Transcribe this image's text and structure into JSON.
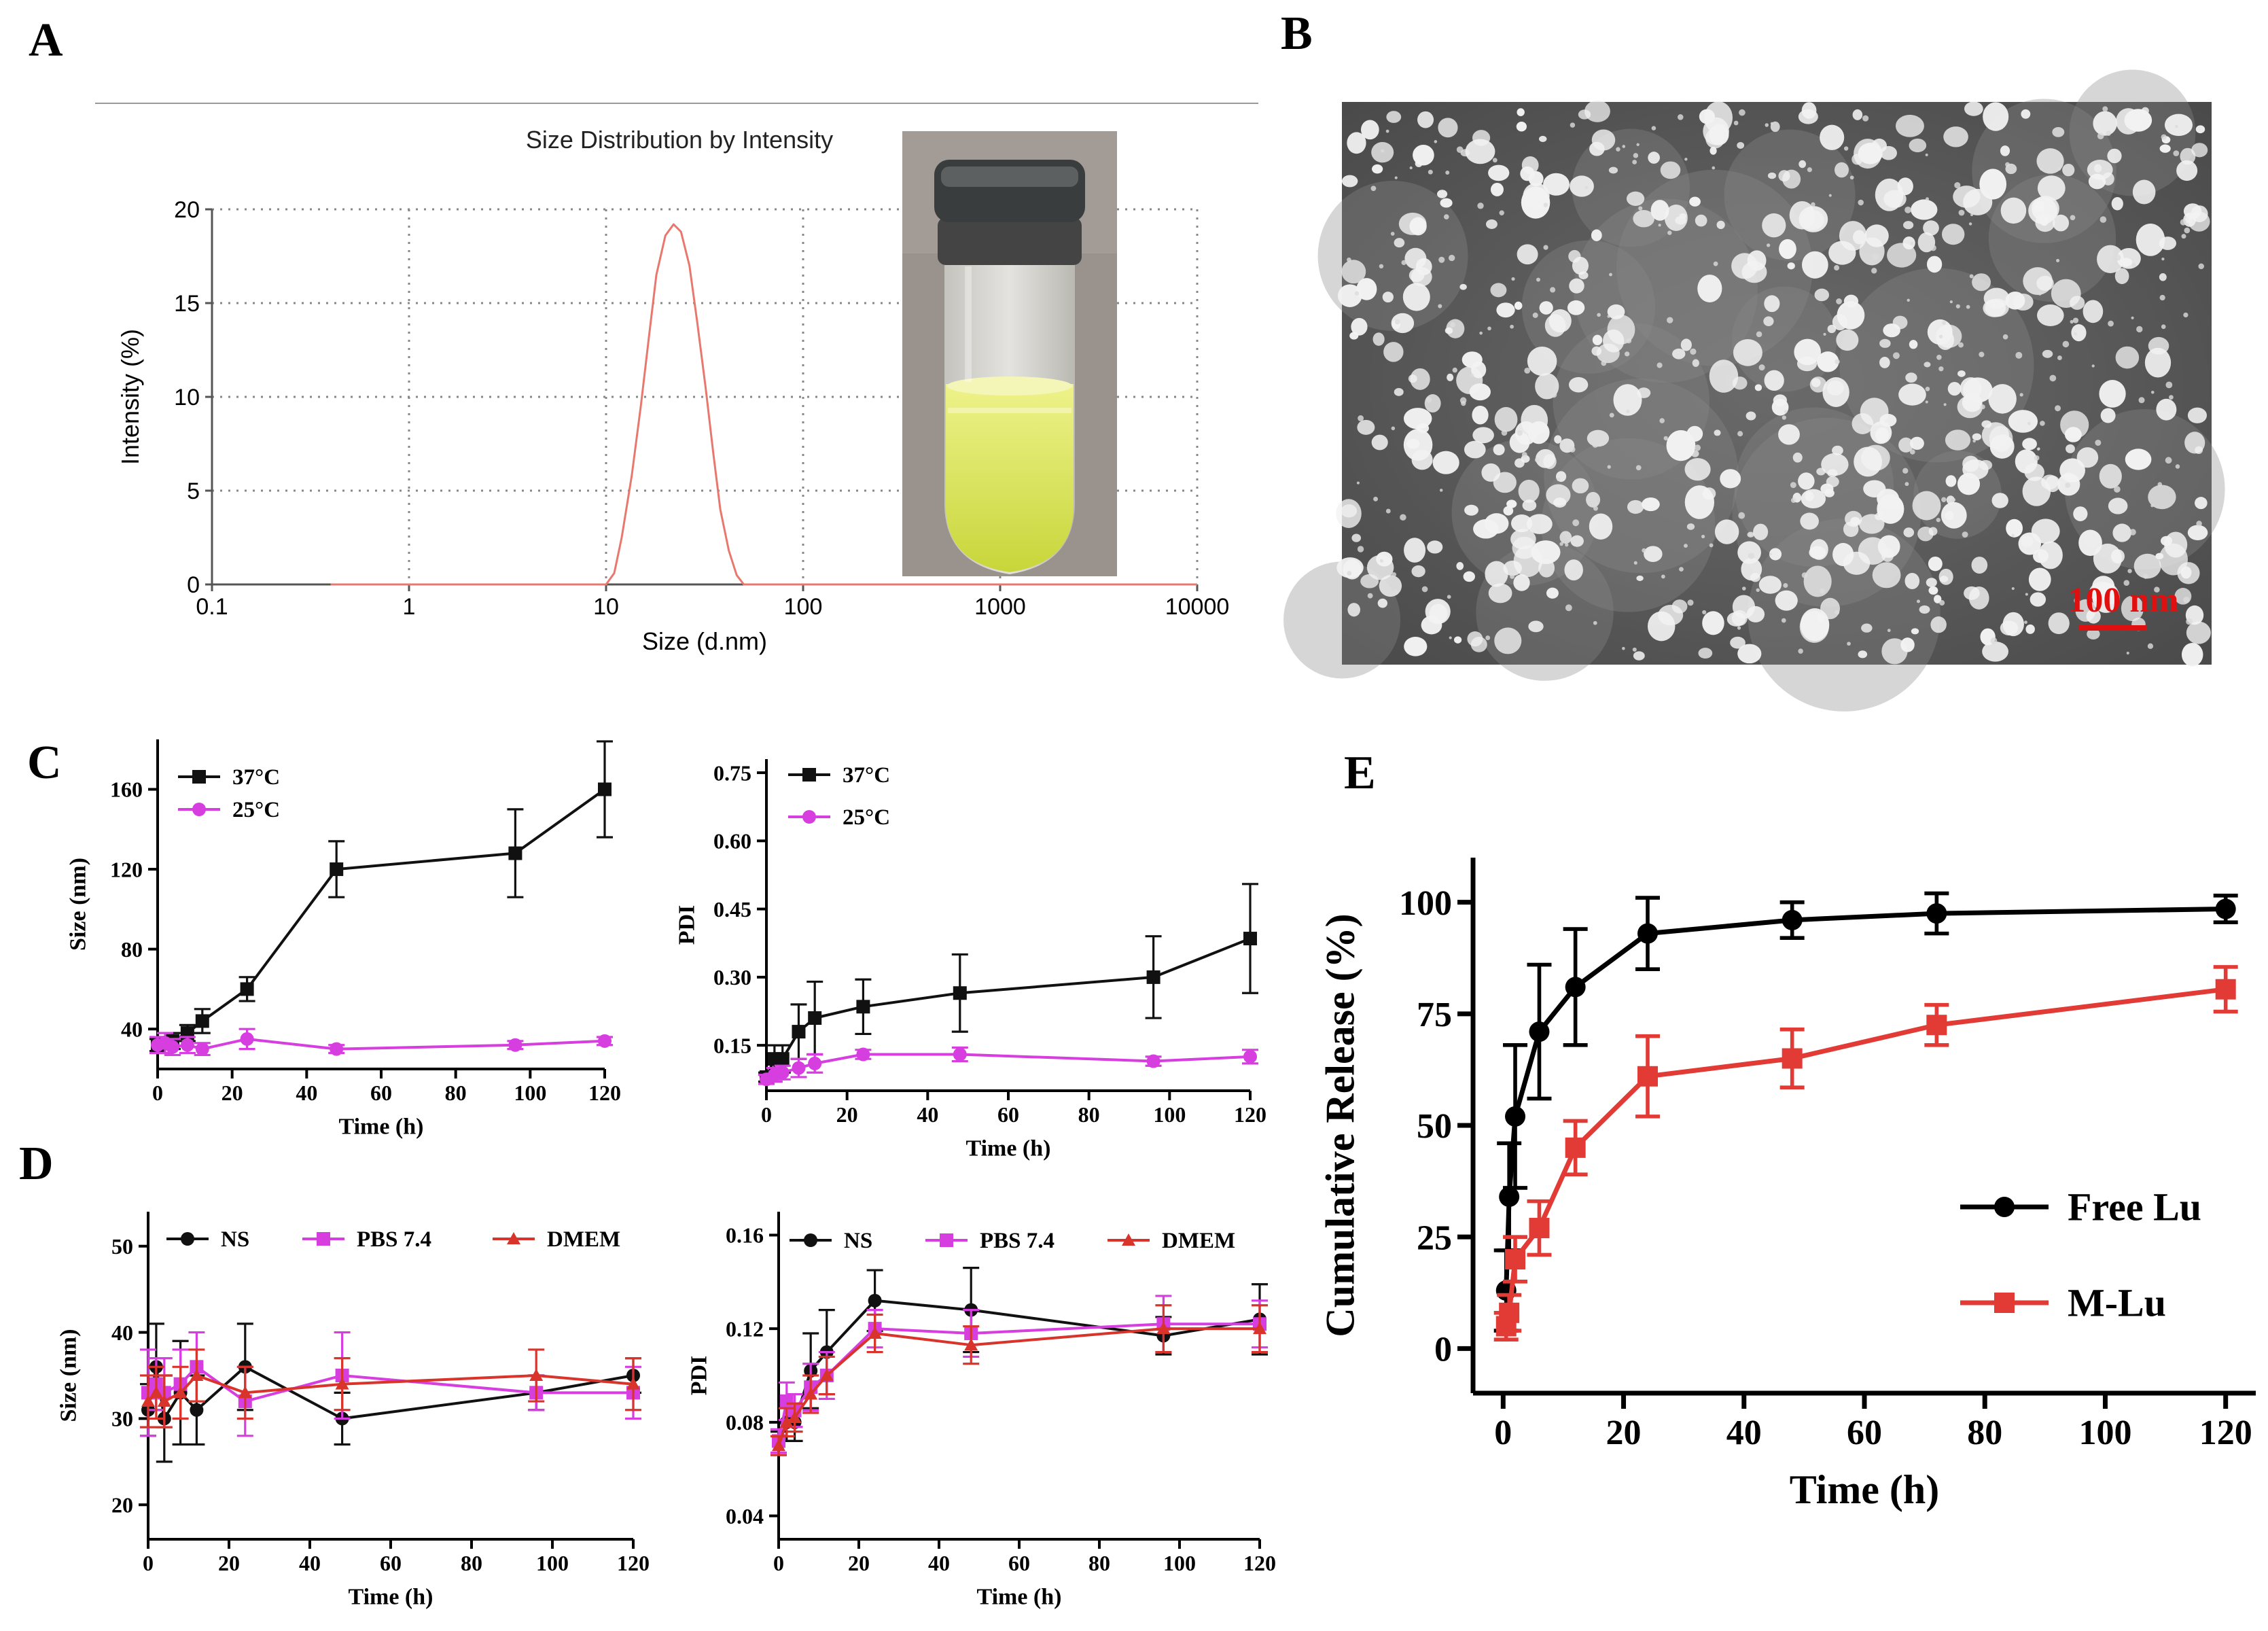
{
  "panel_labels": [
    "A",
    "B",
    "C",
    "D",
    "E"
  ],
  "panel_b": {
    "scale_bar_label": "100 nm"
  },
  "chart_data": [
    {
      "id": "A",
      "type": "line",
      "title": "Size Distribution by Intensity",
      "xlabel": "Size (d.nm)",
      "ylabel": "Intensity (%)",
      "xscale": "log",
      "xlim": [
        0.1,
        10000
      ],
      "ylim": [
        0,
        20
      ],
      "grid": true,
      "xticks": [
        0.1,
        1,
        10,
        100,
        1000,
        10000
      ],
      "xtick_labels": [
        "0.1",
        "1",
        "10",
        "100",
        "1000",
        "10000"
      ],
      "yticks": [
        0,
        5,
        10,
        15,
        20
      ],
      "ytick_labels": [
        "0",
        "5",
        "10",
        "15",
        "20"
      ],
      "series": [
        {
          "name": "Intensity",
          "color": "#e8786e",
          "x": [
            0.4,
            10,
            11,
            12,
            13.5,
            15,
            16.5,
            18,
            20,
            22,
            24,
            26.5,
            29,
            32,
            35,
            38,
            42,
            46,
            50,
            55,
            100,
            1000,
            10000
          ],
          "y": [
            0,
            0,
            0.6,
            2.5,
            5.8,
            9.5,
            13.2,
            16.5,
            18.6,
            19.2,
            18.8,
            17.0,
            14.0,
            10.5,
            7.0,
            4.0,
            1.8,
            0.5,
            0,
            0,
            0,
            0,
            0
          ]
        }
      ]
    },
    {
      "id": "C-size",
      "type": "line",
      "xlabel": "Time (h)",
      "ylabel": "Size (nm)",
      "xlim": [
        0,
        120
      ],
      "ylim": [
        20,
        185
      ],
      "xticks": [
        0,
        20,
        40,
        60,
        80,
        100,
        120
      ],
      "xtick_labels": [
        "0",
        "20",
        "40",
        "60",
        "80",
        "100",
        "120"
      ],
      "yticks": [
        40,
        80,
        120,
        160
      ],
      "ytick_labels": [
        "40",
        "80",
        "120",
        "160"
      ],
      "legend": "top-left",
      "series": [
        {
          "name": "37°C",
          "color": "#111111",
          "marker": "square",
          "x": [
            0,
            2,
            4,
            8,
            12,
            24,
            48,
            96,
            120
          ],
          "y": [
            32,
            33,
            34,
            38,
            44,
            60,
            120,
            128,
            160
          ],
          "err": [
            3,
            3,
            4,
            4,
            6,
            6,
            14,
            22,
            24
          ]
        },
        {
          "name": "25°C",
          "color": "#d63ee0",
          "marker": "circle",
          "x": [
            0,
            2,
            4,
            8,
            12,
            24,
            48,
            96,
            120
          ],
          "y": [
            32,
            33,
            31,
            32,
            30,
            35,
            30,
            32,
            34
          ],
          "err": [
            4,
            5,
            4,
            4,
            3,
            5,
            2,
            2,
            2
          ]
        }
      ]
    },
    {
      "id": "C-pdi",
      "type": "line",
      "xlabel": "Time (h)",
      "ylabel": "PDI",
      "xlim": [
        0,
        120
      ],
      "ylim": [
        0.05,
        0.78
      ],
      "xticks": [
        0,
        20,
        40,
        60,
        80,
        100,
        120
      ],
      "xtick_labels": [
        "0",
        "20",
        "40",
        "60",
        "80",
        "100",
        "120"
      ],
      "yticks": [
        0.15,
        0.3,
        0.45,
        0.6,
        0.75
      ],
      "ytick_labels": [
        "0.15",
        "0.30",
        "0.45",
        "0.60",
        "0.75"
      ],
      "legend": "top-left",
      "series": [
        {
          "name": "37°C",
          "color": "#111111",
          "marker": "square",
          "x": [
            0,
            2,
            4,
            8,
            12,
            24,
            48,
            96,
            120
          ],
          "y": [
            0.08,
            0.12,
            0.12,
            0.18,
            0.21,
            0.235,
            0.265,
            0.3,
            0.385
          ],
          "err": [
            0.01,
            0.03,
            0.03,
            0.06,
            0.08,
            0.06,
            0.085,
            0.09,
            0.12
          ]
        },
        {
          "name": "25°C",
          "color": "#d63ee0",
          "marker": "circle",
          "x": [
            0,
            2,
            4,
            8,
            12,
            24,
            48,
            96,
            120
          ],
          "y": [
            0.075,
            0.085,
            0.09,
            0.1,
            0.11,
            0.13,
            0.13,
            0.115,
            0.125
          ],
          "err": [
            0.01,
            0.015,
            0.015,
            0.02,
            0.02,
            0.01,
            0.015,
            0.01,
            0.015
          ]
        }
      ]
    },
    {
      "id": "D-size",
      "type": "line",
      "xlabel": "Time (h)",
      "ylabel": "Size (nm)",
      "xlim": [
        0,
        120
      ],
      "ylim": [
        16,
        54
      ],
      "xticks": [
        0,
        20,
        40,
        60,
        80,
        100,
        120
      ],
      "xtick_labels": [
        "0",
        "20",
        "40",
        "60",
        "80",
        "100",
        "120"
      ],
      "yticks": [
        20,
        30,
        40,
        50
      ],
      "ytick_labels": [
        "20",
        "30",
        "40",
        "50"
      ],
      "legend": "top",
      "series": [
        {
          "name": "NS",
          "color": "#111111",
          "marker": "circle",
          "x": [
            0,
            2,
            4,
            8,
            12,
            24,
            48,
            96,
            120
          ],
          "y": [
            31,
            36,
            30,
            33,
            31,
            36,
            30,
            33,
            35
          ],
          "err": [
            3,
            5,
            5,
            6,
            4,
            5,
            3,
            2,
            2
          ]
        },
        {
          "name": "PBS 7.4",
          "color": "#d63ee0",
          "marker": "square",
          "x": [
            0,
            2,
            4,
            8,
            12,
            24,
            48,
            96,
            120
          ],
          "y": [
            33,
            34,
            33,
            34,
            36,
            32,
            35,
            33,
            33
          ],
          "err": [
            5,
            3,
            4,
            4,
            4,
            4,
            5,
            2,
            3
          ]
        },
        {
          "name": "DMEM",
          "color": "#d8342c",
          "marker": "triangle",
          "x": [
            0,
            2,
            4,
            8,
            12,
            24,
            48,
            96,
            120
          ],
          "y": [
            32,
            33,
            32,
            33,
            35,
            33,
            34,
            35,
            34
          ],
          "err": [
            3,
            3,
            3,
            3,
            3,
            3,
            3,
            3,
            3
          ]
        }
      ]
    },
    {
      "id": "D-pdi",
      "type": "line",
      "xlabel": "Time (h)",
      "ylabel": "PDI",
      "xlim": [
        0,
        120
      ],
      "ylim": [
        0.03,
        0.17
      ],
      "xticks": [
        0,
        20,
        40,
        60,
        80,
        100,
        120
      ],
      "xtick_labels": [
        "0",
        "20",
        "40",
        "60",
        "80",
        "100",
        "120"
      ],
      "yticks": [
        0.04,
        0.08,
        0.12,
        0.16
      ],
      "ytick_labels": [
        "0.04",
        "0.08",
        "0.12",
        "0.16"
      ],
      "legend": "top",
      "series": [
        {
          "name": "NS",
          "color": "#111111",
          "marker": "circle",
          "x": [
            0,
            2,
            4,
            8,
            12,
            24,
            48,
            96,
            120
          ],
          "y": [
            0.071,
            0.08,
            0.08,
            0.102,
            0.11,
            0.132,
            0.128,
            0.117,
            0.124
          ],
          "err": [
            0.005,
            0.008,
            0.008,
            0.016,
            0.018,
            0.013,
            0.018,
            0.008,
            0.015
          ]
        },
        {
          "name": "PBS 7.4",
          "color": "#d63ee0",
          "marker": "square",
          "x": [
            0,
            2,
            4,
            8,
            12,
            24,
            48,
            96,
            120
          ],
          "y": [
            0.072,
            0.089,
            0.085,
            0.095,
            0.1,
            0.12,
            0.118,
            0.122,
            0.122
          ],
          "err": [
            0.005,
            0.008,
            0.007,
            0.01,
            0.01,
            0.008,
            0.01,
            0.012,
            0.01
          ]
        },
        {
          "name": "DMEM",
          "color": "#d8342c",
          "marker": "triangle",
          "x": [
            0,
            2,
            4,
            8,
            12,
            24,
            48,
            96,
            120
          ],
          "y": [
            0.07,
            0.08,
            0.082,
            0.092,
            0.1,
            0.118,
            0.113,
            0.12,
            0.12
          ],
          "err": [
            0.004,
            0.006,
            0.006,
            0.008,
            0.008,
            0.008,
            0.008,
            0.01,
            0.01
          ]
        }
      ]
    },
    {
      "id": "E",
      "type": "line",
      "xlabel": "Time (h)",
      "ylabel": "Cumulative Release (%)",
      "xlim": [
        -5,
        125
      ],
      "ylim": [
        -10,
        110
      ],
      "xticks": [
        0,
        20,
        40,
        60,
        80,
        100,
        120
      ],
      "xtick_labels": [
        "0",
        "20",
        "40",
        "60",
        "80",
        "100",
        "120"
      ],
      "yticks": [
        0,
        25,
        50,
        75,
        100
      ],
      "ytick_labels": [
        "0",
        "25",
        "50",
        "75",
        "100"
      ],
      "legend": "right",
      "series": [
        {
          "name": "Free Lu",
          "color": "#000000",
          "marker": "circle",
          "x": [
            0.5,
            1,
            2,
            6,
            12,
            24,
            48,
            72,
            120
          ],
          "y": [
            13,
            34,
            52,
            71,
            81,
            93,
            96,
            97.5,
            98.5
          ],
          "err": [
            9,
            12,
            16,
            15,
            13,
            8,
            4,
            4.5,
            3
          ]
        },
        {
          "name": "M-Lu",
          "color": "#e23a35",
          "marker": "square",
          "x": [
            0.5,
            1,
            2,
            6,
            12,
            24,
            48,
            72,
            120
          ],
          "y": [
            5,
            8,
            20,
            27,
            45,
            61,
            65,
            72.5,
            80.5
          ],
          "err": [
            3,
            4,
            5,
            6,
            6,
            9,
            6.5,
            4.5,
            5
          ]
        }
      ]
    }
  ]
}
